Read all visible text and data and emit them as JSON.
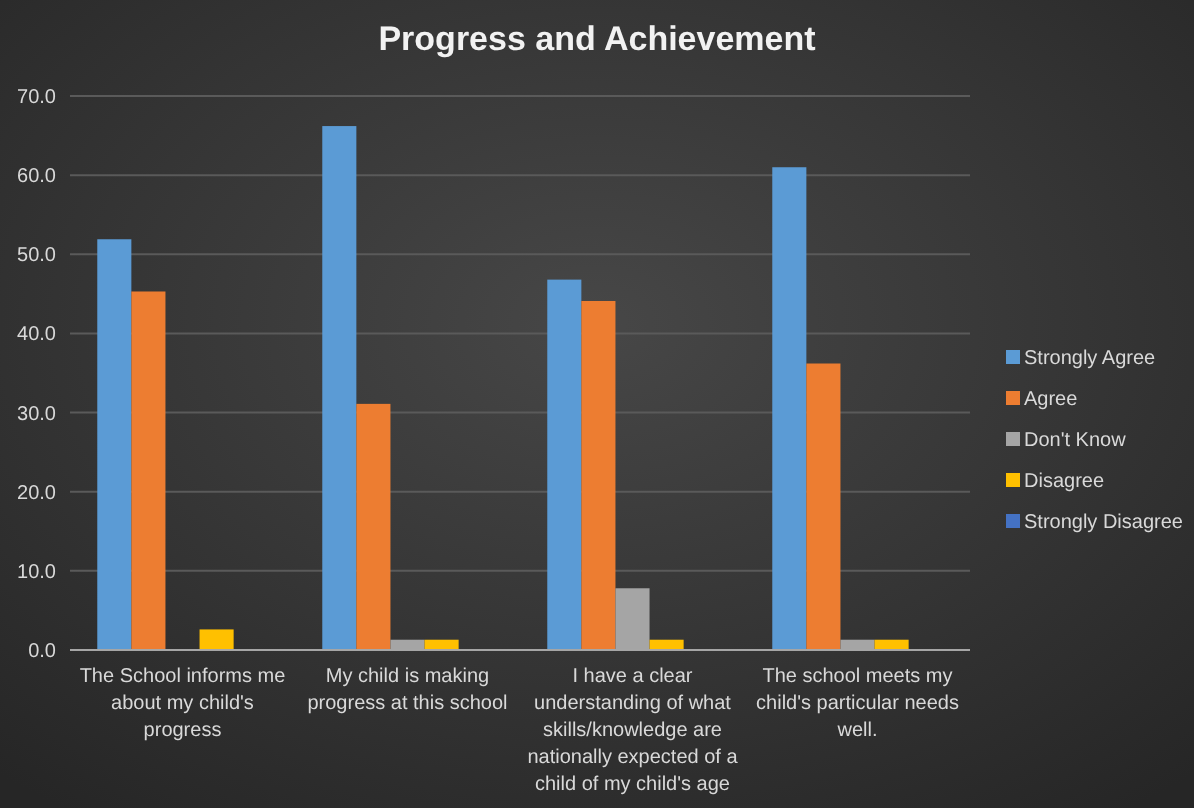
{
  "chart_data": {
    "type": "bar",
    "title": "Progress and Achievement",
    "categories": [
      "The School informs me about my child's progress",
      "My child is making progress at this school",
      "I have a clear understanding of what skills/knowledge are nationally expected of a child of my child's age",
      "The school meets my child's particular needs well."
    ],
    "series": [
      {
        "name": "Strongly Agree",
        "color": "#5b9bd5",
        "values": [
          51.9,
          66.2,
          46.8,
          61.0
        ]
      },
      {
        "name": "Agree",
        "color": "#ed7d31",
        "values": [
          45.3,
          31.1,
          44.1,
          36.2
        ]
      },
      {
        "name": "Don't Know",
        "color": "#a5a5a5",
        "values": [
          0,
          1.3,
          7.8,
          1.3
        ]
      },
      {
        "name": "Disagree",
        "color": "#ffc000",
        "values": [
          2.6,
          1.3,
          1.3,
          1.3
        ]
      },
      {
        "name": "Strongly Disagree",
        "color": "#4472c4",
        "values": [
          0,
          0,
          0,
          0
        ]
      }
    ],
    "ylim": [
      0,
      70
    ],
    "yticks": [
      {
        "value": 0,
        "label": "0.0"
      },
      {
        "value": 10,
        "label": "10.0"
      },
      {
        "value": 20,
        "label": "20.0"
      },
      {
        "value": 30,
        "label": "30.0"
      },
      {
        "value": 40,
        "label": "40.0"
      },
      {
        "value": 50,
        "label": "50.0"
      },
      {
        "value": 60,
        "label": "60.0"
      },
      {
        "value": 70,
        "label": "70.0"
      }
    ],
    "grid": "y",
    "legend": "right"
  }
}
